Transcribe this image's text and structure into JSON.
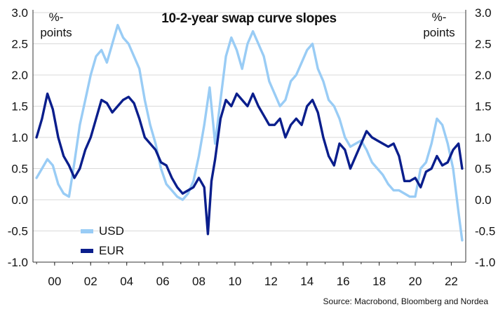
{
  "chart_data": {
    "type": "line",
    "title": "10-2-year swap curve slopes",
    "ylabel_left": "%-\npoints",
    "ylabel_right": "%-\npoints",
    "source": "Source: Macrobond, Bloomberg and Nordea",
    "ylim": [
      -1.0,
      3.0
    ],
    "y_ticks": [
      "3.0",
      "2.5",
      "2.0",
      "1.5",
      "1.0",
      "0.5",
      "0.0",
      "-0.5",
      "-1.0"
    ],
    "y_tick_values": [
      3.0,
      2.5,
      2.0,
      1.5,
      1.0,
      0.5,
      0.0,
      -0.5,
      -1.0
    ],
    "xlim": [
      1998.8,
      2022.8
    ],
    "x_ticks": [
      "00",
      "02",
      "04",
      "06",
      "08",
      "10",
      "12",
      "14",
      "16",
      "18",
      "20",
      "22"
    ],
    "x_tick_values": [
      2000,
      2002,
      2004,
      2006,
      2008,
      2010,
      2012,
      2014,
      2016,
      2018,
      2020,
      2022
    ],
    "grid": true,
    "legend_position": "bottom-left",
    "series": [
      {
        "name": "USD",
        "color": "#99ccf5",
        "x": [
          1999.0,
          1999.3,
          1999.6,
          1999.9,
          2000.2,
          2000.5,
          2000.8,
          2001.1,
          2001.4,
          2001.7,
          2002.0,
          2002.3,
          2002.6,
          2002.9,
          2003.2,
          2003.5,
          2003.8,
          2004.1,
          2004.4,
          2004.7,
          2005.0,
          2005.3,
          2005.6,
          2005.9,
          2006.2,
          2006.5,
          2006.8,
          2007.1,
          2007.4,
          2007.7,
          2008.0,
          2008.3,
          2008.6,
          2008.9,
          2009.2,
          2009.5,
          2009.8,
          2010.1,
          2010.4,
          2010.7,
          2011.0,
          2011.3,
          2011.6,
          2011.9,
          2012.2,
          2012.5,
          2012.8,
          2013.1,
          2013.4,
          2013.7,
          2014.0,
          2014.3,
          2014.6,
          2014.9,
          2015.2,
          2015.5,
          2015.8,
          2016.1,
          2016.4,
          2016.7,
          2017.0,
          2017.3,
          2017.6,
          2017.9,
          2018.2,
          2018.5,
          2018.8,
          2019.1,
          2019.4,
          2019.7,
          2020.0,
          2020.3,
          2020.6,
          2020.9,
          2021.2,
          2021.5,
          2021.8,
          2022.1,
          2022.4,
          2022.6
        ],
        "y": [
          0.35,
          0.5,
          0.65,
          0.55,
          0.25,
          0.1,
          0.05,
          0.6,
          1.2,
          1.6,
          2.0,
          2.3,
          2.4,
          2.2,
          2.5,
          2.8,
          2.6,
          2.5,
          2.3,
          2.1,
          1.6,
          1.2,
          0.9,
          0.5,
          0.25,
          0.15,
          0.05,
          0.0,
          0.1,
          0.3,
          0.7,
          1.2,
          1.8,
          0.9,
          1.6,
          2.3,
          2.6,
          2.4,
          2.1,
          2.5,
          2.7,
          2.5,
          2.3,
          1.9,
          1.7,
          1.5,
          1.6,
          1.9,
          2.0,
          2.2,
          2.4,
          2.5,
          2.1,
          1.9,
          1.6,
          1.5,
          1.3,
          1.0,
          0.85,
          0.9,
          0.95,
          0.8,
          0.6,
          0.5,
          0.4,
          0.25,
          0.15,
          0.15,
          0.1,
          0.05,
          0.05,
          0.5,
          0.6,
          0.9,
          1.3,
          1.2,
          0.9,
          0.5,
          -0.2,
          -0.65
        ]
      },
      {
        "name": "EUR",
        "color": "#0a1e8c",
        "x": [
          1999.0,
          1999.3,
          1999.6,
          1999.9,
          2000.2,
          2000.5,
          2000.8,
          2001.1,
          2001.4,
          2001.7,
          2002.0,
          2002.3,
          2002.6,
          2002.9,
          2003.2,
          2003.5,
          2003.8,
          2004.1,
          2004.4,
          2004.7,
          2005.0,
          2005.3,
          2005.6,
          2005.9,
          2006.2,
          2006.5,
          2006.8,
          2007.1,
          2007.4,
          2007.7,
          2008.0,
          2008.3,
          2008.5,
          2008.7,
          2008.9,
          2009.2,
          2009.5,
          2009.8,
          2010.1,
          2010.4,
          2010.7,
          2011.0,
          2011.3,
          2011.6,
          2011.9,
          2012.2,
          2012.5,
          2012.8,
          2013.1,
          2013.4,
          2013.7,
          2014.0,
          2014.3,
          2014.6,
          2014.9,
          2015.2,
          2015.5,
          2015.8,
          2016.1,
          2016.4,
          2016.7,
          2017.0,
          2017.3,
          2017.6,
          2017.9,
          2018.2,
          2018.5,
          2018.8,
          2019.1,
          2019.4,
          2019.7,
          2020.0,
          2020.3,
          2020.6,
          2020.9,
          2021.2,
          2021.5,
          2021.8,
          2022.1,
          2022.4,
          2022.6
        ],
        "y": [
          1.0,
          1.3,
          1.7,
          1.45,
          1.0,
          0.7,
          0.55,
          0.35,
          0.5,
          0.8,
          1.0,
          1.3,
          1.6,
          1.55,
          1.4,
          1.5,
          1.6,
          1.65,
          1.55,
          1.3,
          1.0,
          0.9,
          0.8,
          0.6,
          0.55,
          0.35,
          0.2,
          0.1,
          0.15,
          0.2,
          0.35,
          0.2,
          -0.55,
          0.3,
          0.65,
          1.3,
          1.6,
          1.5,
          1.7,
          1.6,
          1.5,
          1.7,
          1.5,
          1.35,
          1.2,
          1.2,
          1.3,
          1.0,
          1.2,
          1.3,
          1.2,
          1.5,
          1.6,
          1.4,
          1.0,
          0.7,
          0.55,
          0.9,
          0.8,
          0.5,
          0.7,
          0.9,
          1.1,
          1.0,
          0.95,
          0.9,
          0.85,
          0.9,
          0.7,
          0.3,
          0.3,
          0.35,
          0.2,
          0.45,
          0.5,
          0.7,
          0.55,
          0.6,
          0.8,
          0.9,
          0.5
        ]
      }
    ]
  }
}
